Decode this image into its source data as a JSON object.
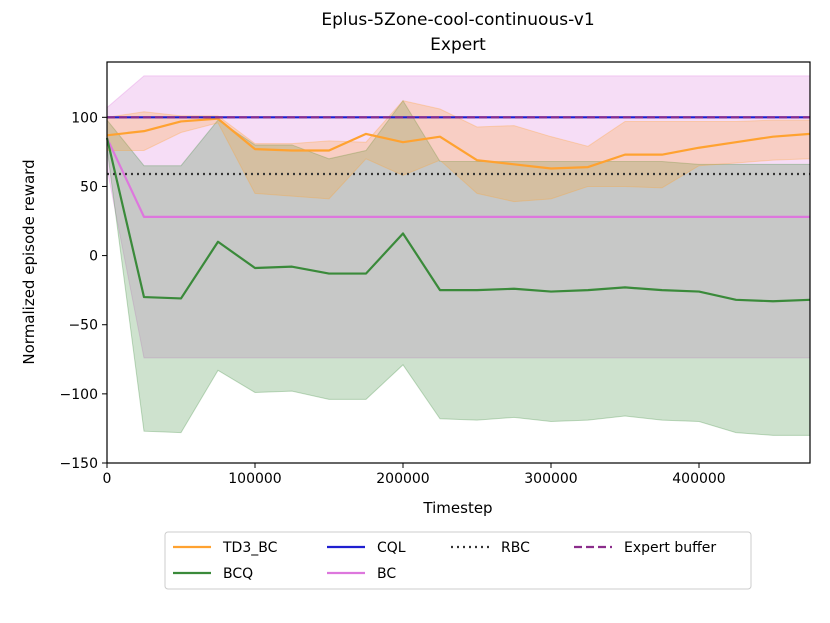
{
  "chart_data": {
    "type": "line",
    "title": "Eplus-5Zone-cool-continuous-v1",
    "subtitle": "Expert",
    "xlabel": "Timestep",
    "ylabel": "Normalized episode reward",
    "xlim": [
      0,
      475000
    ],
    "ylim": [
      -150,
      140
    ],
    "xticks": [
      0,
      100000,
      200000,
      300000,
      400000
    ],
    "xtick_labels": [
      "0",
      "100000",
      "200000",
      "300000",
      "400000"
    ],
    "yticks": [
      -150,
      -100,
      -50,
      0,
      50,
      100
    ],
    "ytick_labels": [
      "−150",
      "−100",
      "−50",
      "0",
      "50",
      "100"
    ],
    "grid": false,
    "legend_position": "below-center",
    "x": [
      0,
      25000,
      50000,
      75000,
      100000,
      125000,
      150000,
      175000,
      200000,
      225000,
      250000,
      275000,
      300000,
      325000,
      350000,
      375000,
      400000,
      425000,
      450000,
      475000
    ],
    "series": [
      {
        "name": "TD3_BC",
        "color": "#ffa230",
        "style": "solid",
        "values": [
          87,
          90,
          97,
          99,
          77,
          76,
          76,
          88,
          82,
          86,
          69,
          66,
          63,
          64,
          73,
          73,
          78,
          82,
          86,
          88
        ],
        "band_upper": [
          100,
          104,
          101,
          101,
          81,
          81,
          83,
          82,
          112,
          106,
          93,
          94,
          86,
          79,
          97,
          97,
          97,
          97,
          98,
          98
        ],
        "band_lower": [
          76,
          76,
          89,
          96,
          45,
          43,
          41,
          70,
          58,
          69,
          45,
          39,
          41,
          50,
          50,
          49,
          65,
          67,
          69,
          70
        ]
      },
      {
        "name": "BCQ",
        "color": "#3a8a3a",
        "style": "solid",
        "values": [
          85,
          -30,
          -31,
          10,
          -9,
          -8,
          -13,
          -13,
          16,
          -25,
          -25,
          -24,
          -26,
          -25,
          -23,
          -25,
          -26,
          -32,
          -33,
          -32
        ],
        "band_upper": [
          98,
          65,
          65,
          98,
          80,
          80,
          70,
          76,
          112,
          68,
          68,
          68,
          68,
          68,
          68,
          68,
          66,
          66,
          66,
          66
        ],
        "band_lower": [
          78,
          -127,
          -128,
          -83,
          -99,
          -98,
          -104,
          -104,
          -79,
          -118,
          -119,
          -117,
          -120,
          -119,
          -116,
          -119,
          -120,
          -128,
          -130,
          -130
        ]
      },
      {
        "name": "CQL",
        "color": "#1f1fd0",
        "style": "solid",
        "values": [
          100,
          100,
          100,
          100,
          100,
          100,
          100,
          100,
          100,
          100,
          100,
          100,
          100,
          100,
          100,
          100,
          100,
          100,
          100,
          100
        ]
      },
      {
        "name": "BC",
        "color": "#dd77dd",
        "style": "solid",
        "values": [
          85,
          28,
          28,
          28,
          28,
          28,
          28,
          28,
          28,
          28,
          28,
          28,
          28,
          28,
          28,
          28,
          28,
          28,
          28,
          28
        ],
        "band_upper": [
          107,
          130,
          130,
          130,
          130,
          130,
          130,
          130,
          130,
          130,
          130,
          130,
          130,
          130,
          130,
          130,
          130,
          130,
          130,
          130
        ],
        "band_lower": [
          63,
          -74,
          -74,
          -74,
          -74,
          -74,
          -74,
          -74,
          -74,
          -74,
          -74,
          -74,
          -74,
          -74,
          -74,
          -74,
          -74,
          -74,
          -74,
          -74
        ]
      },
      {
        "name": "RBC",
        "color": "#333333",
        "style": "dotted",
        "values": [
          59,
          59,
          59,
          59,
          59,
          59,
          59,
          59,
          59,
          59,
          59,
          59,
          59,
          59,
          59,
          59,
          59,
          59,
          59,
          59
        ]
      },
      {
        "name": "Expert buffer",
        "color": "#8b2d8b",
        "style": "dashed",
        "values": [
          100,
          100,
          100,
          100,
          100,
          100,
          100,
          100,
          100,
          100,
          100,
          100,
          100,
          100,
          100,
          100,
          100,
          100,
          100,
          100
        ]
      }
    ]
  }
}
